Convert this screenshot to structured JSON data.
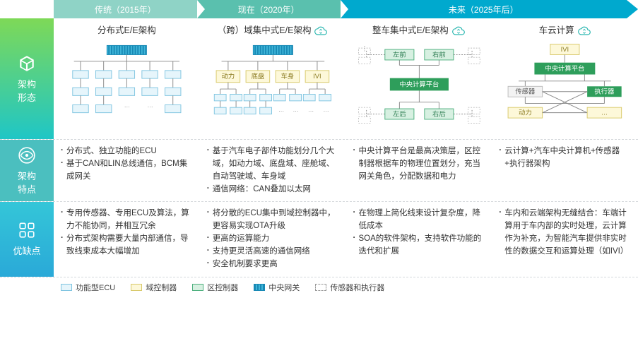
{
  "timeline": {
    "past": {
      "label": "传统（2015年）",
      "bg": "#8fd3c6"
    },
    "now": {
      "label": "现在（2020年）",
      "bg": "#5ac0ae"
    },
    "future": {
      "label": "未来（2025年后）",
      "bg": "#00a9ce"
    }
  },
  "rows": {
    "arch": {
      "label": "架构\n形态"
    },
    "feat": {
      "label": "架构\n特点"
    },
    "pros": {
      "label": "优缺点"
    }
  },
  "columns": {
    "c1": {
      "title": "分布式E/E架构",
      "cloud": false,
      "features": [
        "分布式、独立功能的ECU",
        "基于CAN和LIN总线通信，BCM集成网关"
      ],
      "proscons": [
        "专用传感器、专用ECU及算法，算力不能协同，并相互冗余",
        "分布式架构需要大量内部通信，导致线束成本大幅增加"
      ]
    },
    "c2": {
      "title": "（跨）域集中式E/E架构",
      "cloud": true,
      "features": [
        "基于汽车电子部件功能划分几个大域，如动力域、底盘域、座舱域、自动驾驶域、车身域",
        "通信网络：CAN叠加以太网"
      ],
      "proscons": [
        "将分散的ECU集中到域控制器中，更容易实现OTA升级",
        "更高的运算能力",
        "支持更灵活高速的通信网络",
        "安全机制要求更高"
      ],
      "domains": [
        "动力",
        "底盘",
        "车身",
        "IVI"
      ]
    },
    "c3": {
      "title": "整车集中式E/E架构",
      "cloud": true,
      "features": [
        "中央计算平台是最高决策层，区控制器根据车的物理位置划分，充当网关角色，分配数据和电力"
      ],
      "proscons": [
        "在物理上简化线束设计复杂度，降低成本",
        "SOA的软件架构，支持软件功能的迭代和扩展"
      ],
      "zones": [
        "左前",
        "右前",
        "左后",
        "右后"
      ],
      "ccp": "中央计算平台"
    },
    "c4": {
      "title": "车云计算",
      "cloud": true,
      "features": [
        "云计算+汽车中央计算机+传感器+执行器架构"
      ],
      "proscons": [
        "车内和云端架构无缝结合：车端计算用于车内部的实时处理，云计算作为补充，为智能汽车提供非实时性的数据交互和运算处理（如IVI）"
      ],
      "ivi": "IVI",
      "ccp": "中央计算平台",
      "sensor": "传感器",
      "actuator": "执行器",
      "power": "动力",
      "etc": "…"
    }
  },
  "legend": {
    "ecu": "功能型ECU",
    "dom": "域控制器",
    "zone": "区控制器",
    "gw": "中央网关",
    "sa": "传感器和执行器"
  },
  "palette": {
    "ecu_border": "#7ec4e0",
    "ecu_fill": "#e6f5fb",
    "dom_border": "#d8c96a",
    "dom_fill": "#fdf8d9",
    "zone_border": "#4caf7d",
    "zone_fill": "#d7f0e1",
    "ccp_fill": "#2e9e5b",
    "gw_a": "#1889b5",
    "gw_b": "#3fb5d8",
    "line": "#888888",
    "dash": "#999999"
  }
}
